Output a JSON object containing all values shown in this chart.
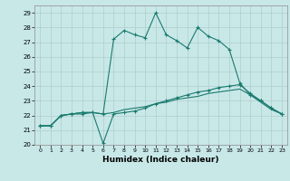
{
  "xlabel": "Humidex (Indice chaleur)",
  "bg_color": "#c8e8e8",
  "line_color": "#1a7a6e",
  "grid_color": "#b0cccc",
  "xlim": [
    -0.5,
    23.5
  ],
  "ylim": [
    20,
    29.5
  ],
  "xticks": [
    0,
    1,
    2,
    3,
    4,
    5,
    6,
    7,
    8,
    9,
    10,
    11,
    12,
    13,
    14,
    15,
    16,
    17,
    18,
    19,
    20,
    21,
    22,
    23
  ],
  "yticks": [
    20,
    21,
    22,
    23,
    24,
    25,
    26,
    27,
    28,
    29
  ],
  "line1_x": [
    0,
    1,
    2,
    3,
    4,
    5,
    6,
    7,
    8,
    9,
    10,
    11,
    12,
    13,
    14,
    15,
    16,
    17,
    18,
    19,
    20,
    21,
    22,
    23
  ],
  "line1_y": [
    21.3,
    21.3,
    22.0,
    22.1,
    22.1,
    22.2,
    22.1,
    27.2,
    27.8,
    27.5,
    27.3,
    29.0,
    27.5,
    27.1,
    26.6,
    28.0,
    27.4,
    27.1,
    26.5,
    24.2,
    23.4,
    23.0,
    22.5,
    22.1
  ],
  "line2_x": [
    0,
    1,
    2,
    3,
    4,
    5,
    6,
    7,
    8,
    9,
    10,
    11,
    12,
    13,
    14,
    15,
    16,
    17,
    18,
    19,
    20,
    21,
    22,
    23
  ],
  "line2_y": [
    21.3,
    21.3,
    22.0,
    22.1,
    22.2,
    22.2,
    20.1,
    22.1,
    22.2,
    22.3,
    22.5,
    22.8,
    23.0,
    23.2,
    23.4,
    23.6,
    23.7,
    23.9,
    24.0,
    24.1,
    23.5,
    23.0,
    22.5,
    22.1
  ],
  "line3_x": [
    0,
    1,
    2,
    3,
    4,
    5,
    6,
    7,
    8,
    9,
    10,
    11,
    12,
    13,
    14,
    15,
    16,
    17,
    18,
    19,
    20,
    21,
    22,
    23
  ],
  "line3_y": [
    21.3,
    21.3,
    22.0,
    22.1,
    22.2,
    22.2,
    22.1,
    22.2,
    22.4,
    22.5,
    22.6,
    22.8,
    22.9,
    23.1,
    23.2,
    23.3,
    23.5,
    23.6,
    23.7,
    23.8,
    23.4,
    22.9,
    22.4,
    22.1
  ]
}
